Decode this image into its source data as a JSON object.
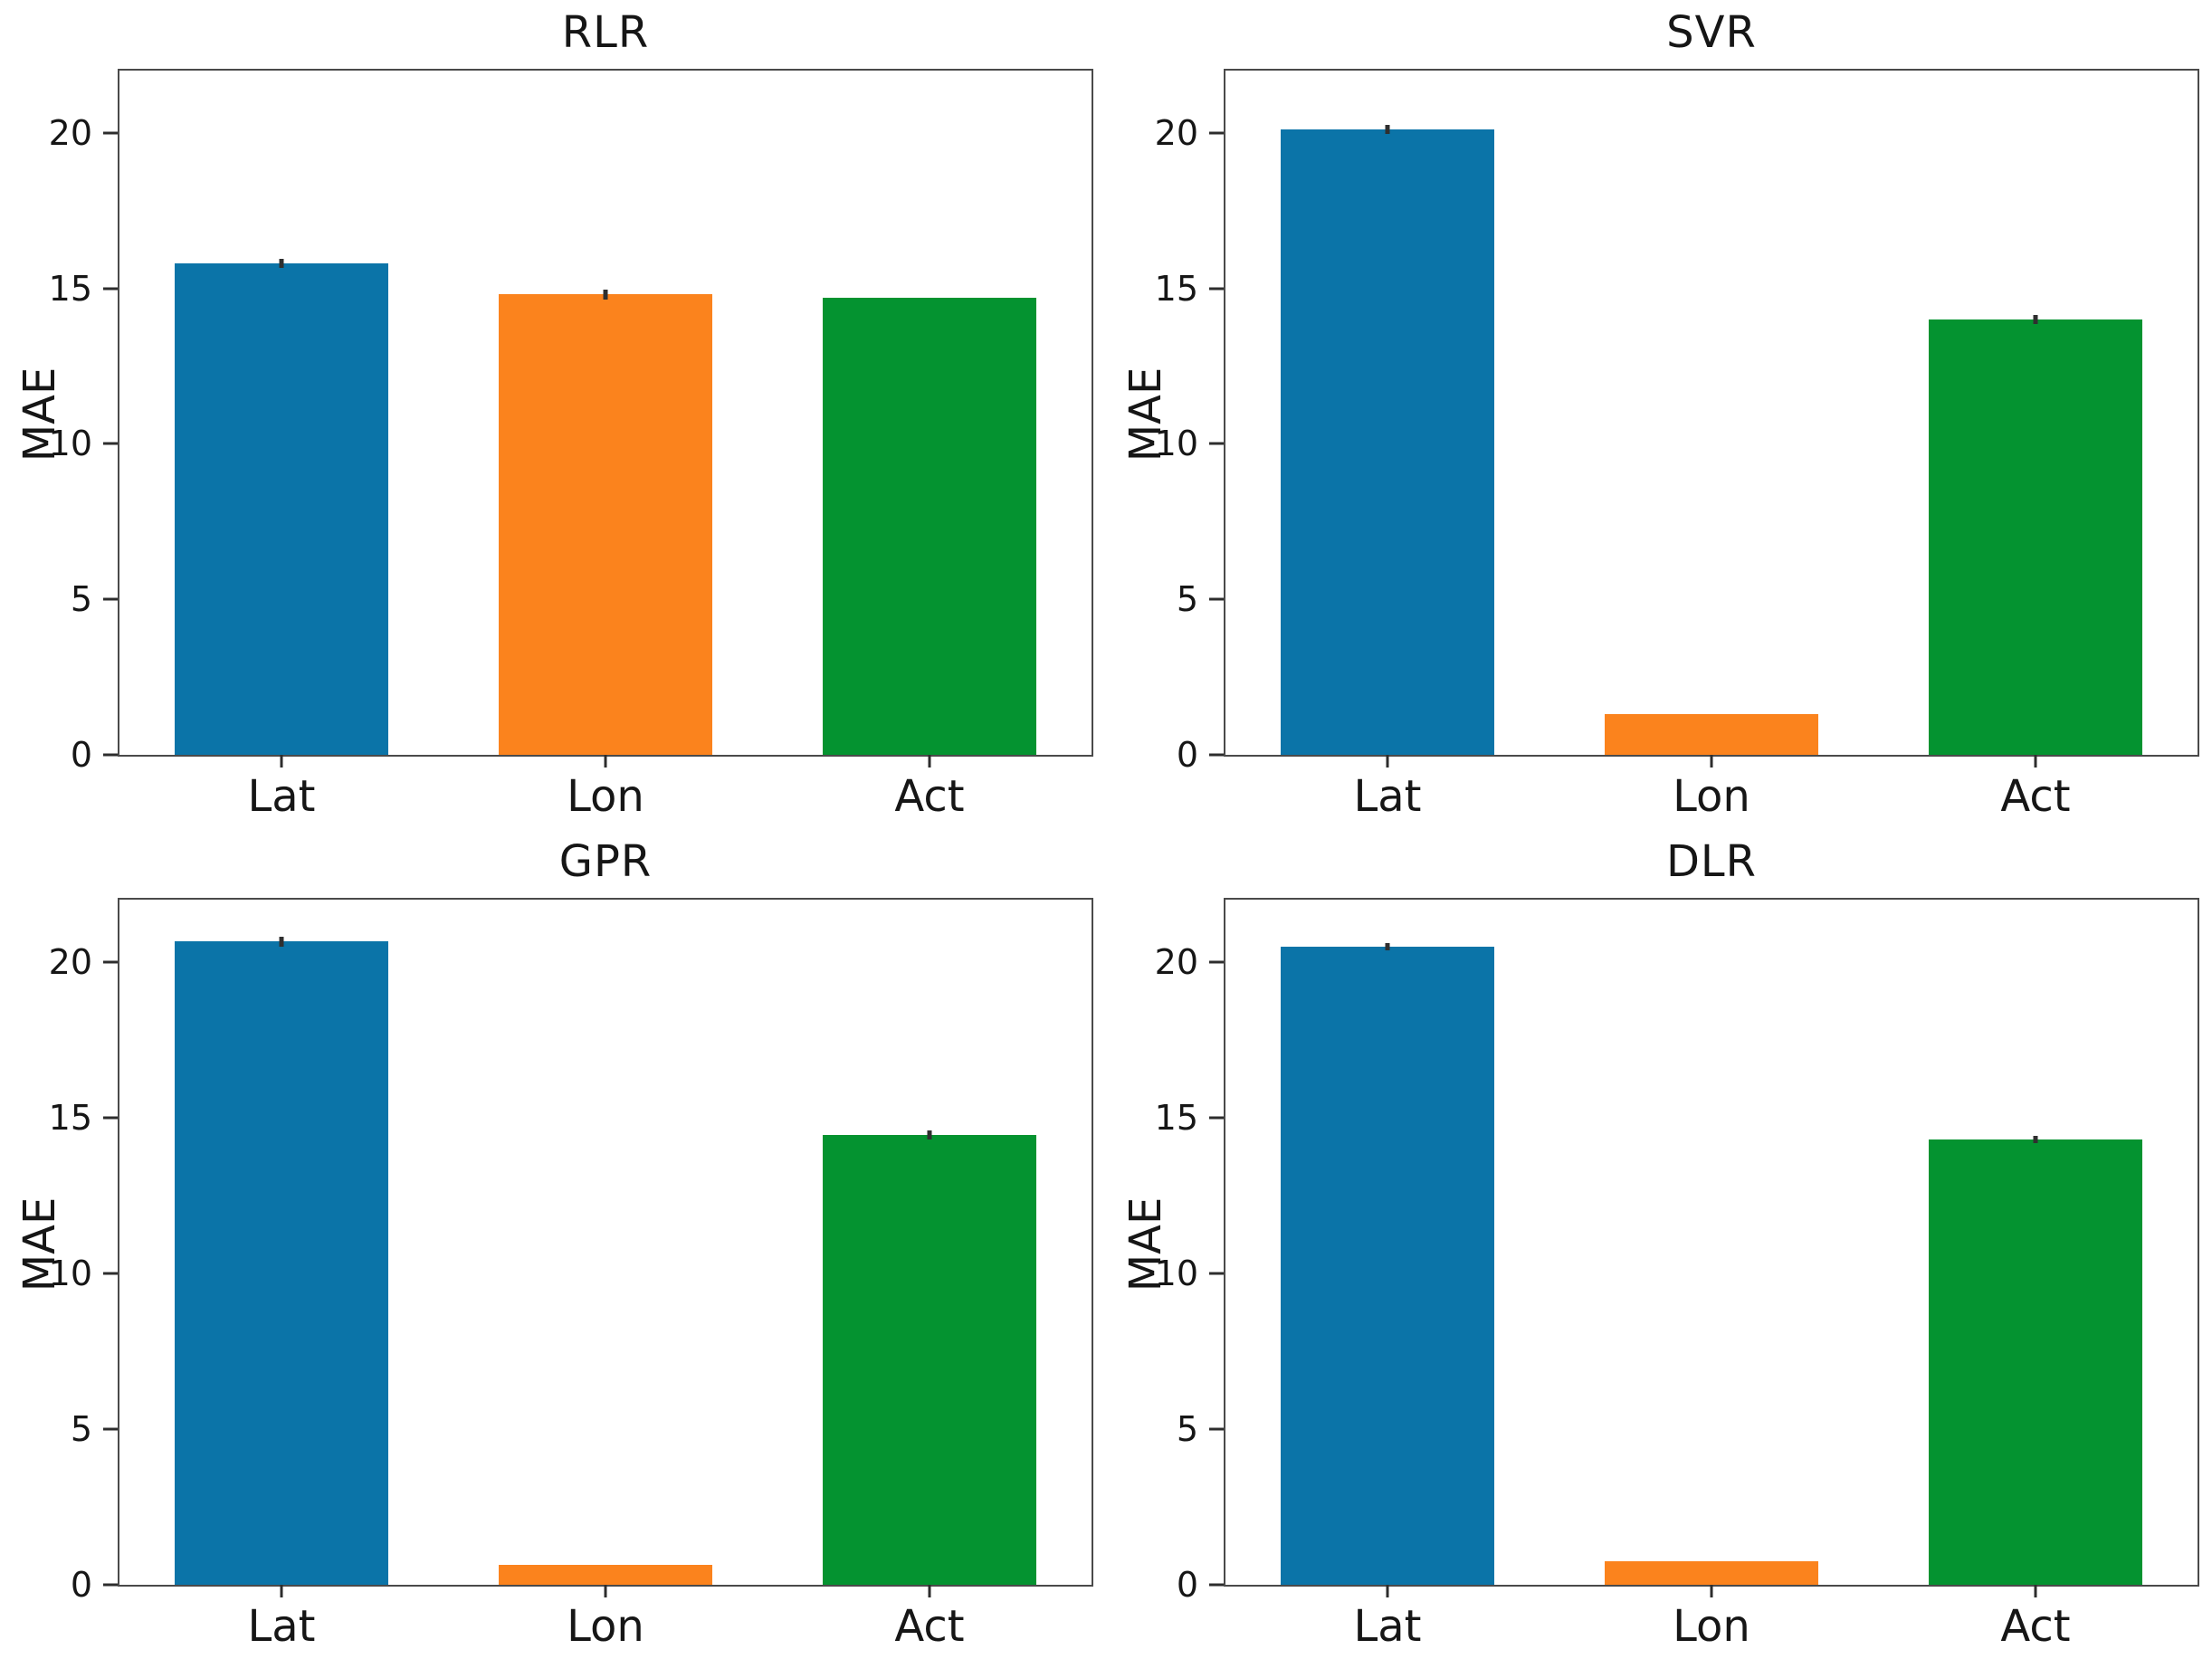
{
  "figure": {
    "ylabel": "MAE",
    "panel_titles": [
      "RLR",
      "SVR",
      "GPR",
      "DLR"
    ]
  },
  "palette": {
    "blue": "#0b74a8",
    "orange": "#fb831d",
    "green": "#049330",
    "axis": "#4a4a4a",
    "error": "#2f2f2f",
    "text": "#161616",
    "background": "#ffffff"
  },
  "chart_data": [
    {
      "type": "bar",
      "title": "RLR",
      "xlabel": "",
      "ylabel": "MAE",
      "categories": [
        "Lat",
        "Lon",
        "Act"
      ],
      "values": [
        15.8,
        14.8,
        14.7
      ],
      "errors": [
        0.15,
        0.15,
        0
      ],
      "colors": [
        "#0b74a8",
        "#fb831d",
        "#049330"
      ],
      "yticks": [
        0,
        5,
        10,
        15,
        20
      ],
      "ylim": [
        0,
        22
      ],
      "grid": false,
      "legend": false
    },
    {
      "type": "bar",
      "title": "SVR",
      "xlabel": "",
      "ylabel": "MAE",
      "categories": [
        "Lat",
        "Lon",
        "Act"
      ],
      "values": [
        20.1,
        1.3,
        14.0
      ],
      "errors": [
        0.15,
        0,
        0.15
      ],
      "colors": [
        "#0b74a8",
        "#fb831d",
        "#049330"
      ],
      "yticks": [
        0,
        5,
        10,
        15,
        20
      ],
      "ylim": [
        0,
        22
      ],
      "grid": false,
      "legend": false
    },
    {
      "type": "bar",
      "title": "GPR",
      "xlabel": "",
      "ylabel": "MAE",
      "categories": [
        "Lat",
        "Lon",
        "Act"
      ],
      "values": [
        20.65,
        0.65,
        14.45
      ],
      "errors": [
        0.15,
        0,
        0.15
      ],
      "colors": [
        "#0b74a8",
        "#fb831d",
        "#049330"
      ],
      "yticks": [
        0,
        5,
        10,
        15,
        20
      ],
      "ylim": [
        0,
        22
      ],
      "grid": false,
      "legend": false
    },
    {
      "type": "bar",
      "title": "DLR",
      "xlabel": "",
      "ylabel": "MAE",
      "categories": [
        "Lat",
        "Lon",
        "Act"
      ],
      "values": [
        20.5,
        0.75,
        14.3
      ],
      "errors": [
        0.12,
        0,
        0.12
      ],
      "colors": [
        "#0b74a8",
        "#fb831d",
        "#049330"
      ],
      "yticks": [
        0,
        5,
        10,
        15,
        20
      ],
      "ylim": [
        0,
        22
      ],
      "grid": false,
      "legend": false
    }
  ]
}
